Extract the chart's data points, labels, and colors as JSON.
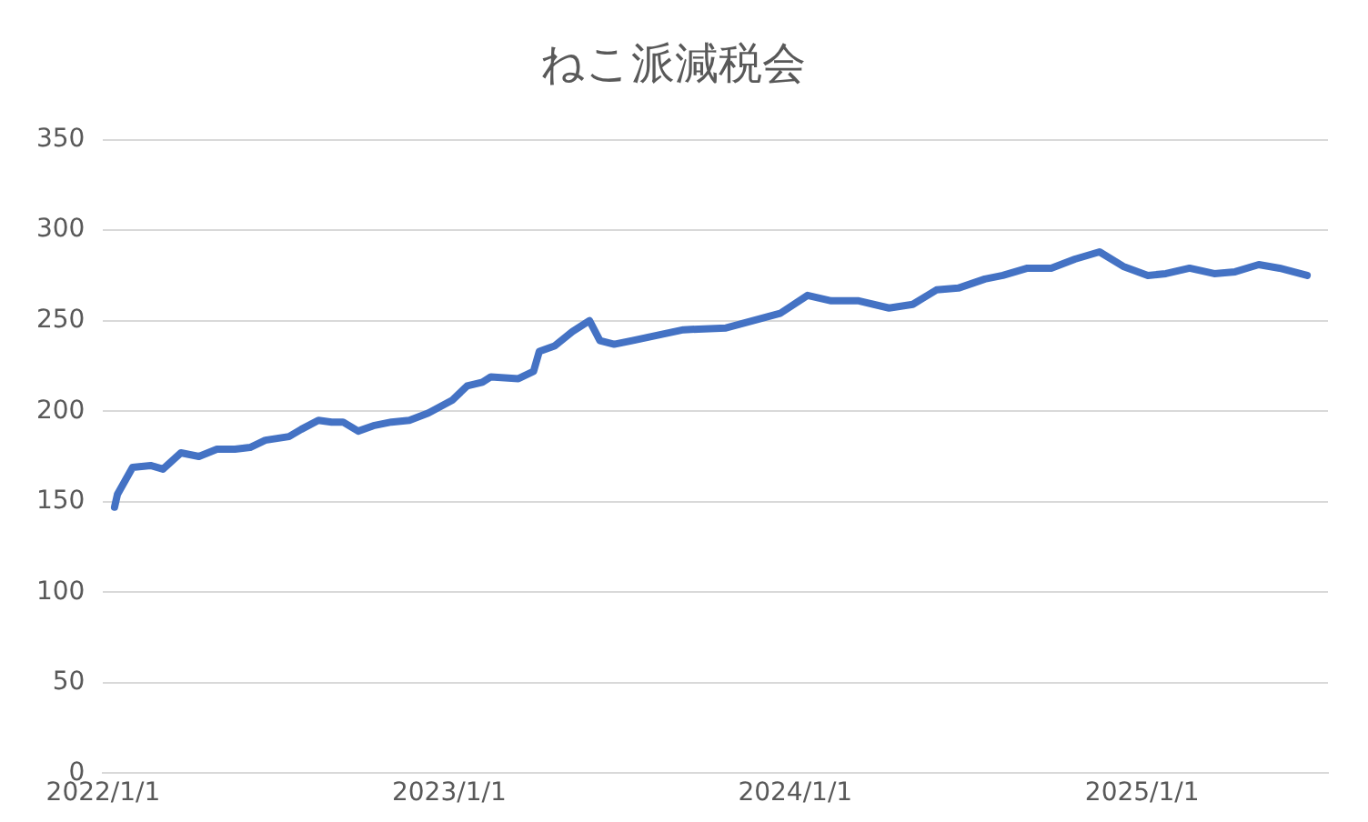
{
  "chart_data": {
    "type": "line",
    "title": "ねこ派減税会",
    "x": [
      "2022-01-13",
      "2022-01-16",
      "2022-02-01",
      "2022-02-20",
      "2022-03-05",
      "2022-03-24",
      "2022-04-12",
      "2022-05-01",
      "2022-05-20",
      "2022-06-05",
      "2022-06-21",
      "2022-07-16",
      "2022-07-29",
      "2022-08-16",
      "2022-08-30",
      "2022-09-11",
      "2022-09-27",
      "2022-10-13",
      "2022-11-01",
      "2022-11-20",
      "2022-12-10",
      "2023-01-04",
      "2023-01-20",
      "2023-02-05",
      "2023-02-14",
      "2023-03-15",
      "2023-03-31",
      "2023-04-06",
      "2023-04-22",
      "2023-05-11",
      "2023-05-29",
      "2023-06-09",
      "2023-06-24",
      "2023-07-13",
      "2023-09-05",
      "2023-10-20",
      "2023-12-16",
      "2024-01-14",
      "2024-02-08",
      "2024-03-08",
      "2024-04-09",
      "2024-05-04",
      "2024-05-29",
      "2024-06-21",
      "2024-07-19",
      "2024-08-07",
      "2024-09-02",
      "2024-09-27",
      "2024-10-22",
      "2024-11-17",
      "2024-12-12",
      "2025-01-07",
      "2025-01-26",
      "2025-02-20",
      "2025-03-18",
      "2025-04-09",
      "2025-05-04",
      "2025-05-26",
      "2025-06-24"
    ],
    "values": [
      147,
      154,
      169,
      170,
      168,
      177,
      175,
      179,
      179,
      180,
      184,
      186,
      190,
      195,
      194,
      194,
      189,
      192,
      194,
      195,
      199,
      206,
      214,
      216,
      219,
      218,
      222,
      233,
      236,
      244,
      250,
      239,
      237,
      239,
      245,
      246,
      254,
      264,
      261,
      261,
      257,
      259,
      267,
      268,
      273,
      275,
      279,
      279,
      284,
      288,
      280,
      275,
      276,
      279,
      276,
      277,
      281,
      279,
      275
    ],
    "color": "#4472c4",
    "xlim": [
      "2022-01-01",
      "2025-07-16"
    ],
    "xticks": [
      {
        "value": "2022-01-01",
        "label": "2022/1/1"
      },
      {
        "value": "2023-01-01",
        "label": "2023/1/1"
      },
      {
        "value": "2024-01-01",
        "label": "2024/1/1"
      },
      {
        "value": "2025-01-01",
        "label": "2025/1/1"
      }
    ],
    "ylim": [
      0,
      350
    ],
    "yticks": [
      0,
      50,
      100,
      150,
      200,
      250,
      300,
      350
    ],
    "grid": "y"
  }
}
